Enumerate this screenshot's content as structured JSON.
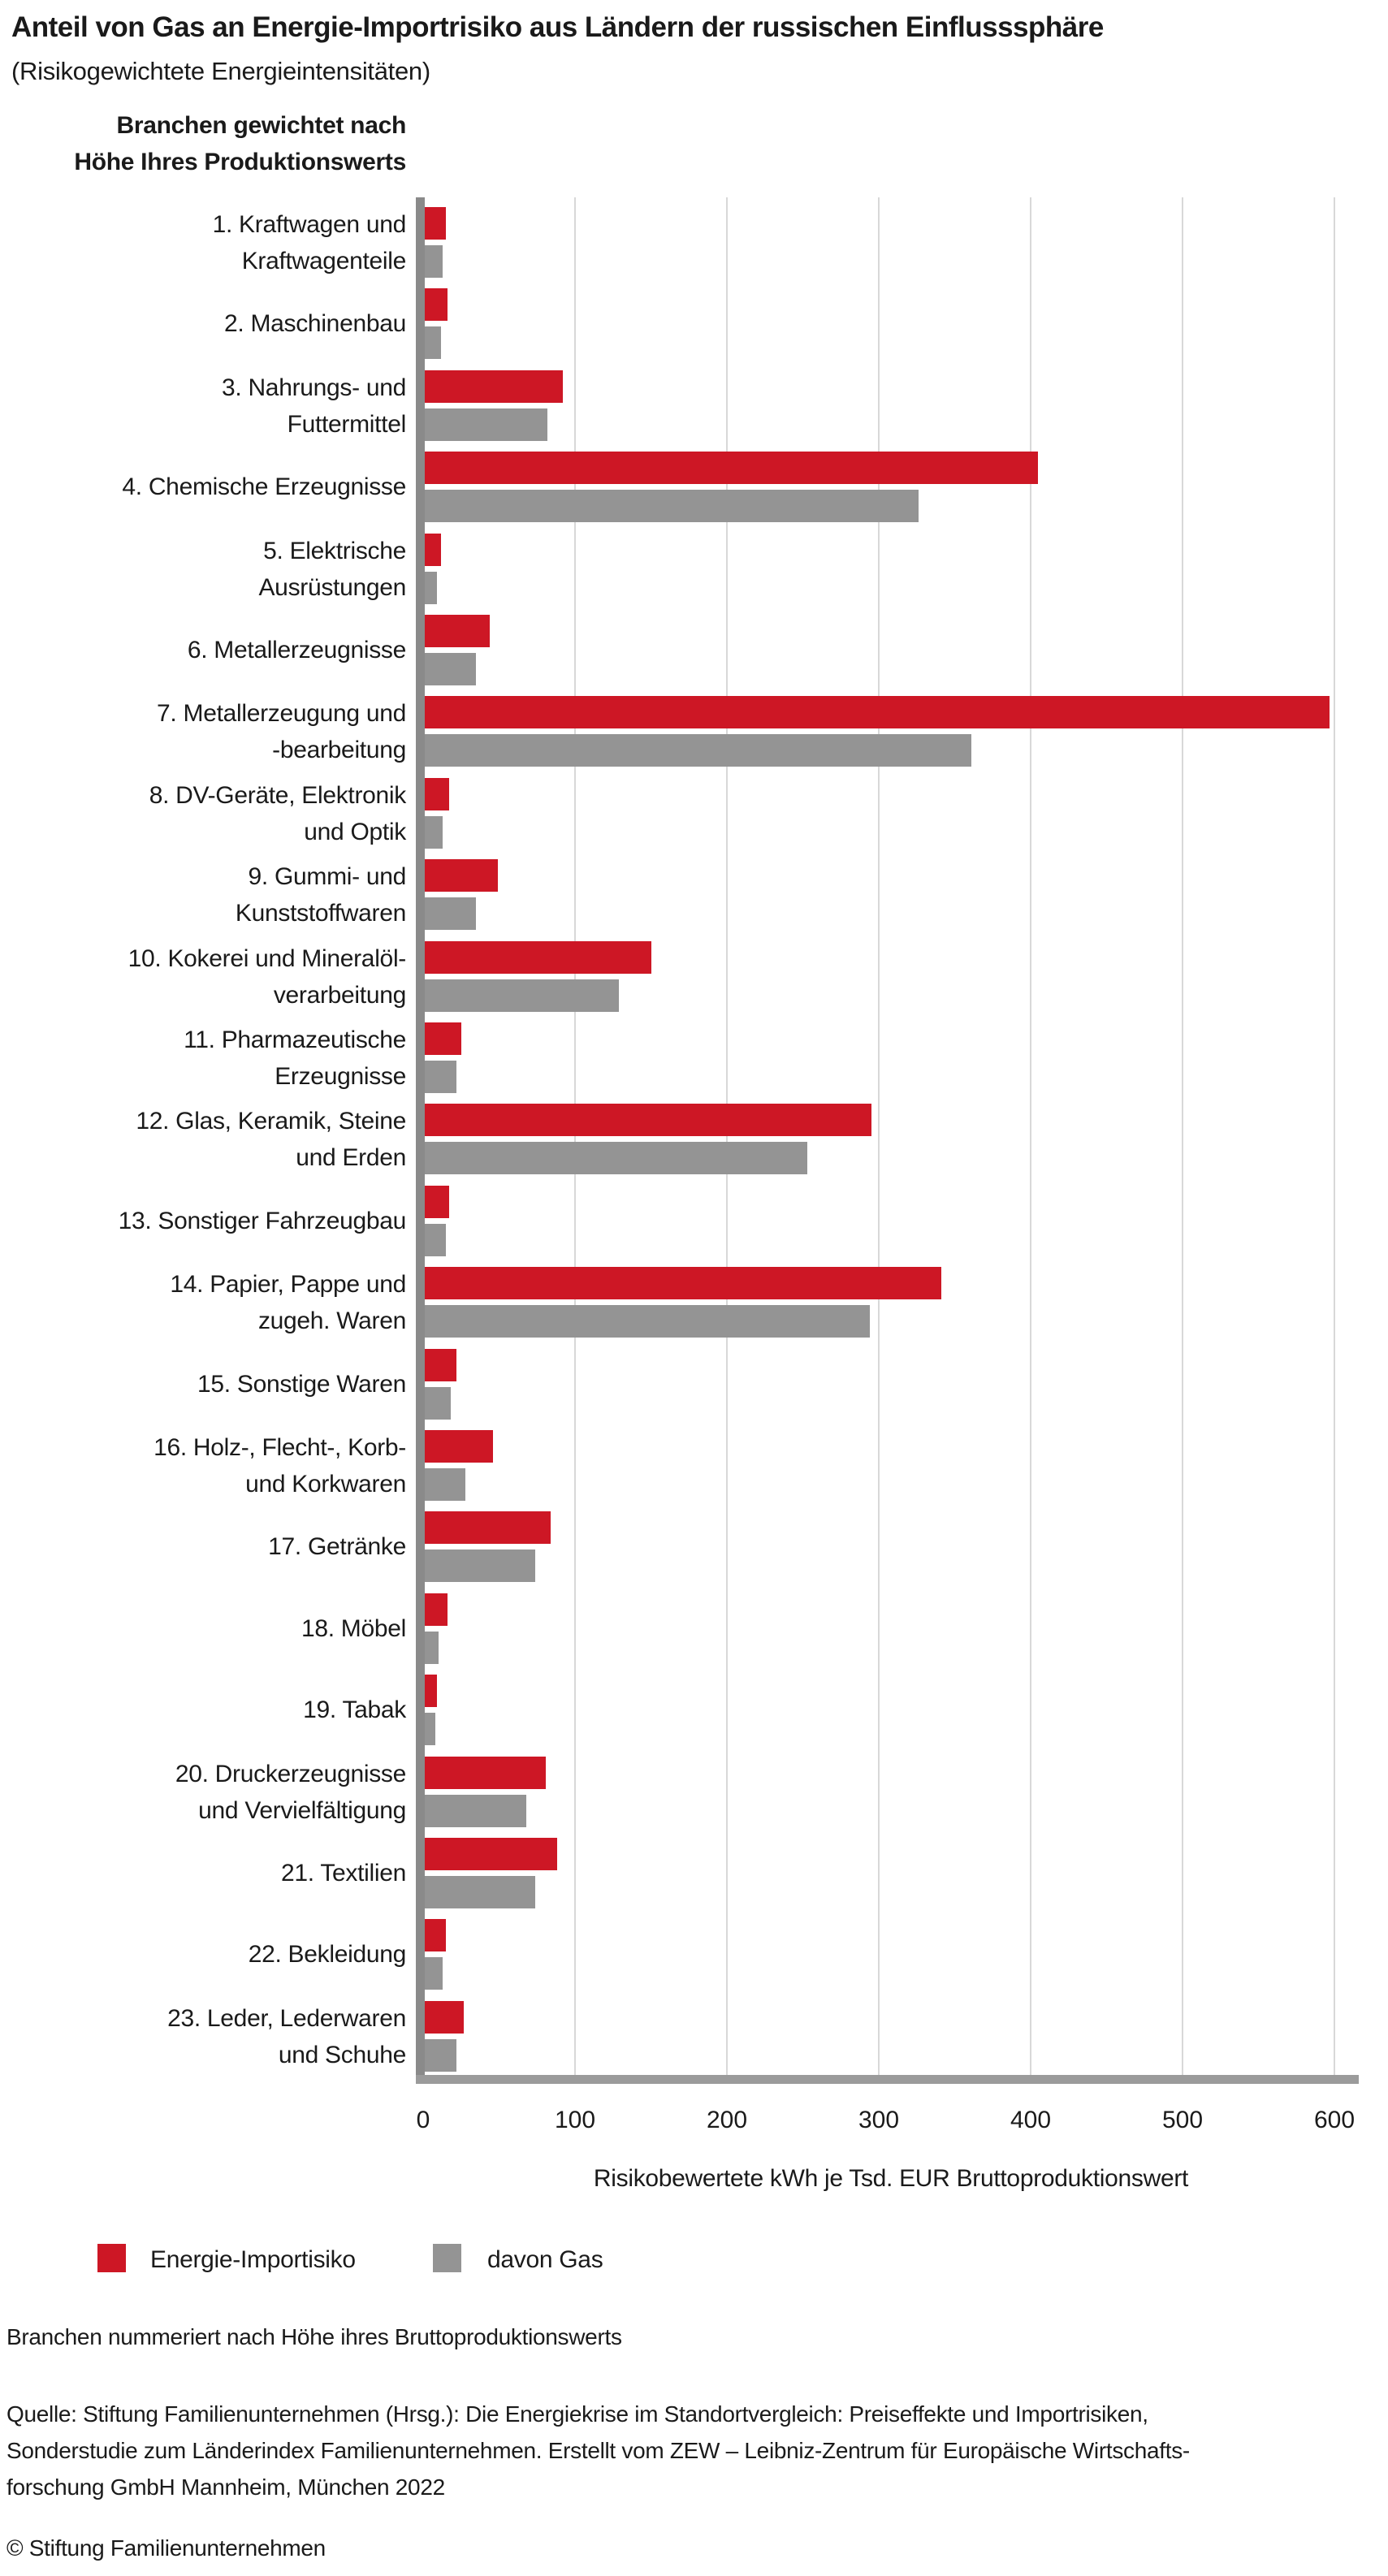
{
  "title": "Anteil von Gas an Energie-Importrisiko aus Ländern der russischen Einflusssphäre",
  "subtitle": "(Risikogewichtete Energieintensitäten)",
  "axis_header": {
    "line1": "Branchen gewichtet nach",
    "line2": "Höhe Ihres Produktionswerts"
  },
  "legend": {
    "items": [
      {
        "label": "Energie-Importisiko",
        "color": "#cd1725"
      },
      {
        "label": "davon Gas",
        "color": "#949494"
      }
    ]
  },
  "note": "Branchen nummeriert nach Höhe ihres Bruttoproduktionswerts",
  "source": {
    "lines": [
      "Quelle: Stiftung Familienunternehmen (Hrsg.): Die Energiekrise im Standortvergleich: Preiseffekte und Importrisiken,",
      "Sonderstudie zum Länderindex Familienunternehmen. Erstellt vom ZEW – Leibniz-Zentrum für Europäische Wirtschafts-",
      "forschung GmbH Mannheim, München 2022"
    ]
  },
  "copyright": "© Stiftung Familienunternehmen",
  "chart_data": {
    "type": "bar",
    "orientation": "horizontal",
    "title": "Anteil von Gas an Energie-Importrisiko aus Ländern der russischen Einflusssphäre",
    "xlabel": "Risikobewertete kWh je Tsd. EUR Bruttoproduktionswert",
    "xlim": [
      0,
      600
    ],
    "x_ticks": [
      0,
      100,
      200,
      300,
      400,
      500,
      600
    ],
    "grid": true,
    "legend_position": "bottom",
    "categories": [
      {
        "label": "1. Kraftwagen und Kraftwagenteile",
        "lines": [
          "1. Kraftwagen und",
          "Kraftwagenteile"
        ]
      },
      {
        "label": "2. Maschinenbau",
        "lines": [
          "2. Maschinenbau"
        ]
      },
      {
        "label": "3. Nahrungs- und Futtermittel",
        "lines": [
          "3. Nahrungs- und",
          "Futtermittel"
        ]
      },
      {
        "label": "4. Chemische Erzeugnisse",
        "lines": [
          "4. Chemische Erzeugnisse"
        ]
      },
      {
        "label": "5. Elektrische Ausrüstungen",
        "lines": [
          "5. Elektrische",
          "Ausrüstungen"
        ]
      },
      {
        "label": "6. Metallerzeugnisse",
        "lines": [
          "6. Metallerzeugnisse"
        ]
      },
      {
        "label": "7. Metallerzeugung und -bearbeitung",
        "lines": [
          "7. Metallerzeugung und",
          "-bearbeitung"
        ]
      },
      {
        "label": "8. DV-Geräte, Elektronik und Optik",
        "lines": [
          "8. DV-Geräte, Elektronik",
          "und Optik"
        ]
      },
      {
        "label": "9. Gummi- und Kunststoffwaren",
        "lines": [
          "9. Gummi- und",
          "Kunststoffwaren"
        ]
      },
      {
        "label": "10. Kokerei und Mineralölverarbeitung",
        "lines": [
          "10. Kokerei und Mineralöl-",
          "verarbeitung"
        ]
      },
      {
        "label": "11. Pharmazeutische Erzeugnisse",
        "lines": [
          "11. Pharmazeutische",
          "Erzeugnisse"
        ]
      },
      {
        "label": "12. Glas, Keramik, Steine und Erden",
        "lines": [
          "12. Glas, Keramik, Steine",
          "und Erden"
        ]
      },
      {
        "label": "13. Sonstiger Fahrzeugbau",
        "lines": [
          "13. Sonstiger Fahrzeugbau"
        ]
      },
      {
        "label": "14. Papier, Pappe und zugeh. Waren",
        "lines": [
          "14. Papier, Pappe und",
          "zugeh. Waren"
        ]
      },
      {
        "label": "15. Sonstige Waren",
        "lines": [
          "15. Sonstige Waren"
        ]
      },
      {
        "label": "16. Holz-, Flecht-, Korb- und Korkwaren",
        "lines": [
          "16. Holz-, Flecht-, Korb-",
          "und Korkwaren"
        ]
      },
      {
        "label": "17. Getränke",
        "lines": [
          "17. Getränke"
        ]
      },
      {
        "label": "18. Möbel",
        "lines": [
          "18. Möbel"
        ]
      },
      {
        "label": "19. Tabak",
        "lines": [
          "19. Tabak"
        ]
      },
      {
        "label": "20. Druckerzeugnisse und Vervielfältigung",
        "lines": [
          "20. Druckerzeugnisse",
          "und Vervielfältigung"
        ]
      },
      {
        "label": "21. Textilien",
        "lines": [
          "21. Textilien"
        ]
      },
      {
        "label": "22. Bekleidung",
        "lines": [
          "22. Bekleidung"
        ]
      },
      {
        "label": "23. Leder, Lederwaren und Schuhe",
        "lines": [
          "23. Leder, Lederwaren",
          "und Schuhe"
        ]
      }
    ],
    "series": [
      {
        "name": "Energie-Importisiko",
        "color": "#cd1725",
        "values": [
          15,
          16,
          92,
          405,
          12,
          44,
          597,
          17,
          49,
          150,
          25,
          295,
          17,
          341,
          22,
          46,
          84,
          16,
          9,
          81,
          88,
          15,
          27
        ]
      },
      {
        "name": "davon Gas",
        "color": "#949494",
        "values": [
          13,
          12,
          82,
          326,
          9,
          35,
          361,
          13,
          35,
          129,
          22,
          253,
          15,
          294,
          18,
          28,
          74,
          10,
          8,
          68,
          74,
          13,
          22
        ]
      }
    ]
  }
}
